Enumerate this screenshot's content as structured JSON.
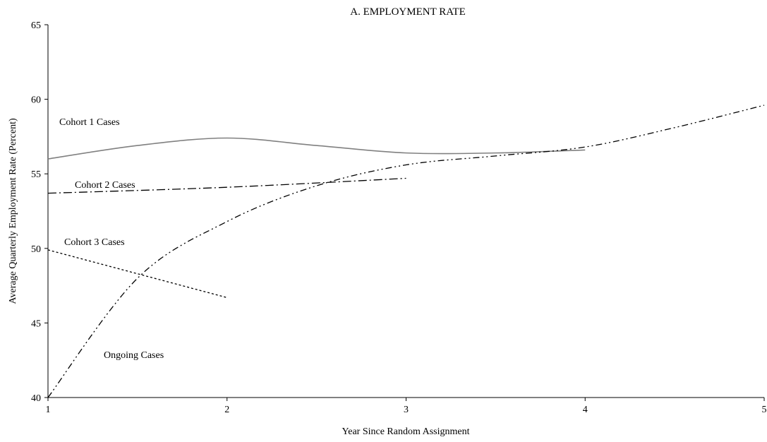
{
  "chart_data": {
    "type": "line",
    "title": "A.  EMPLOYMENT RATE",
    "xlabel": "Year Since Random Assignment",
    "ylabel": "Average Quarterly Employment Rate (Percent)",
    "xlim": [
      1,
      5
    ],
    "ylim": [
      40,
      65
    ],
    "xticks": [
      "1",
      "2",
      "3",
      "4",
      "5"
    ],
    "yticks": [
      "40",
      "45",
      "50",
      "55",
      "60",
      "65"
    ],
    "grid": false,
    "legend": "none",
    "series": [
      {
        "name": "Cohort 1 Cases",
        "style": "solid",
        "color": "#808080",
        "x": [
          1,
          1.5,
          2,
          2.5,
          3,
          3.5,
          4
        ],
        "y": [
          56.0,
          56.9,
          57.4,
          56.9,
          56.4,
          56.4,
          56.6
        ]
      },
      {
        "name": "Cohort 2 Cases",
        "style": "dash-dot",
        "color": "#000000",
        "x": [
          1,
          2,
          3
        ],
        "y": [
          53.7,
          54.1,
          54.7
        ]
      },
      {
        "name": "Cohort 3 Cases",
        "style": "dotted",
        "color": "#000000",
        "x": [
          1,
          2
        ],
        "y": [
          49.9,
          46.7
        ]
      },
      {
        "name": "Ongoing Cases",
        "style": "dash-dot-dot",
        "color": "#000000",
        "x": [
          1,
          1.5,
          2,
          2.5,
          3,
          3.5,
          4,
          4.5,
          5
        ],
        "y": [
          40.0,
          48.0,
          51.8,
          54.2,
          55.6,
          56.2,
          56.8,
          58.1,
          59.6
        ]
      }
    ]
  }
}
